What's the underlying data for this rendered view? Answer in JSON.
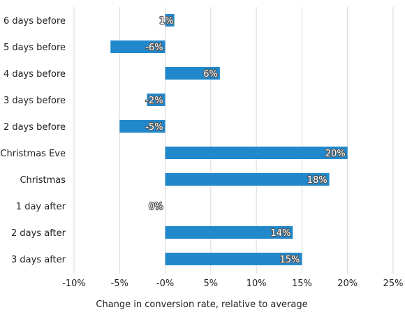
{
  "chart_data": {
    "type": "bar",
    "orientation": "horizontal",
    "categories": [
      "6 days before",
      "5 days before",
      "4 days before",
      "3 days before",
      "2 days before",
      "Christmas Eve",
      "Christmas",
      "1 day after",
      "2 days after",
      "3 days after"
    ],
    "values": [
      1,
      -6,
      6,
      -2,
      -5,
      20,
      18,
      0,
      14,
      15
    ],
    "value_labels": [
      "1%",
      "-6%",
      "6%",
      "-2%",
      "-5%",
      "20%",
      "18%",
      "0%",
      "14%",
      "15%"
    ],
    "x_ticks": [
      -10,
      -5,
      0,
      5,
      10,
      15,
      20,
      25
    ],
    "x_tick_labels": [
      "-10%",
      "-5%",
      "-0%",
      "5%",
      "10%",
      "15%",
      "20%",
      "25%"
    ],
    "xlim": [
      -10,
      25
    ],
    "xlabel": "Change in conversion rate, relative to average",
    "ylabel": "",
    "title": "",
    "grid": "vertical",
    "legend": "none",
    "bar_color": "#2188cc",
    "grid_color": "#d9d9d9"
  }
}
